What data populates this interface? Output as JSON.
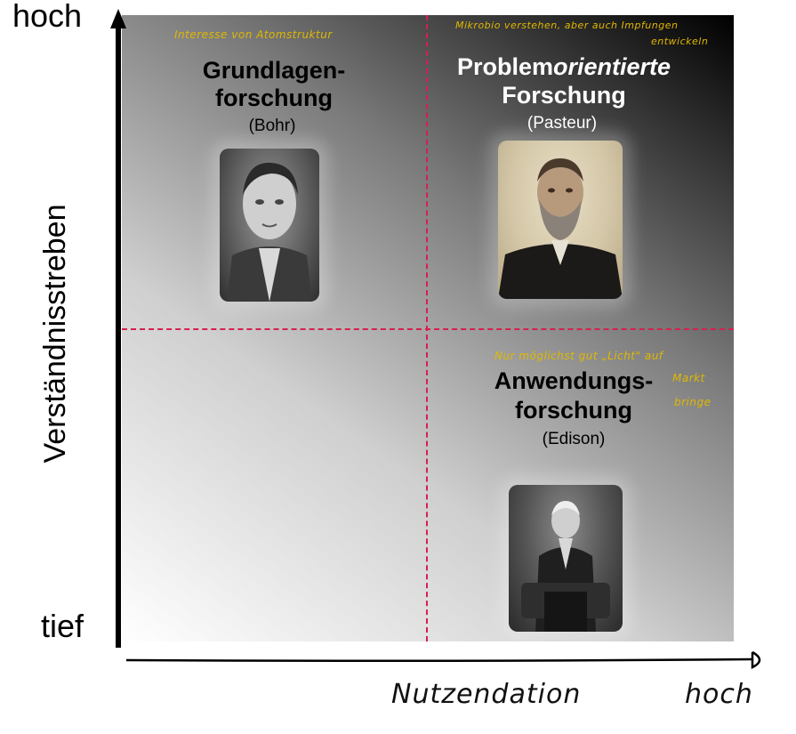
{
  "y_axis": {
    "title": "Verständnisstreben",
    "top_label": "hoch",
    "bottom_label": "tief"
  },
  "x_axis": {
    "title_handwritten": "Nutzendation",
    "right_label_handwritten": "hoch"
  },
  "quadrants": {
    "top_left": {
      "title_line1": "Grundlagen-",
      "title_line2": "forschung",
      "subtitle": "(Bohr)",
      "note": "Interesse von Atomstruktur",
      "portrait_icon": "portrait-bohr"
    },
    "top_right": {
      "title_line1_regular": "Problem",
      "title_line1_italic": "orientierte",
      "title_line2": "Forschung",
      "subtitle": "(Pasteur)",
      "note_line1": "Mikrobio verstehen, aber auch Impfungen",
      "note_line2": "entwickeln",
      "portrait_icon": "portrait-pasteur"
    },
    "bottom_right": {
      "title_line1": "Anwendungs-",
      "title_line2": "forschung",
      "subtitle": "(Edison)",
      "note_line1": "Nur möglichst gut „Licht\" auf",
      "note_line2": "Markt",
      "note_line3": "bringe",
      "portrait_icon": "portrait-edison"
    }
  },
  "colors": {
    "divider": "#d6204e",
    "handwriting": "#e0b800",
    "axis": "#000000"
  }
}
